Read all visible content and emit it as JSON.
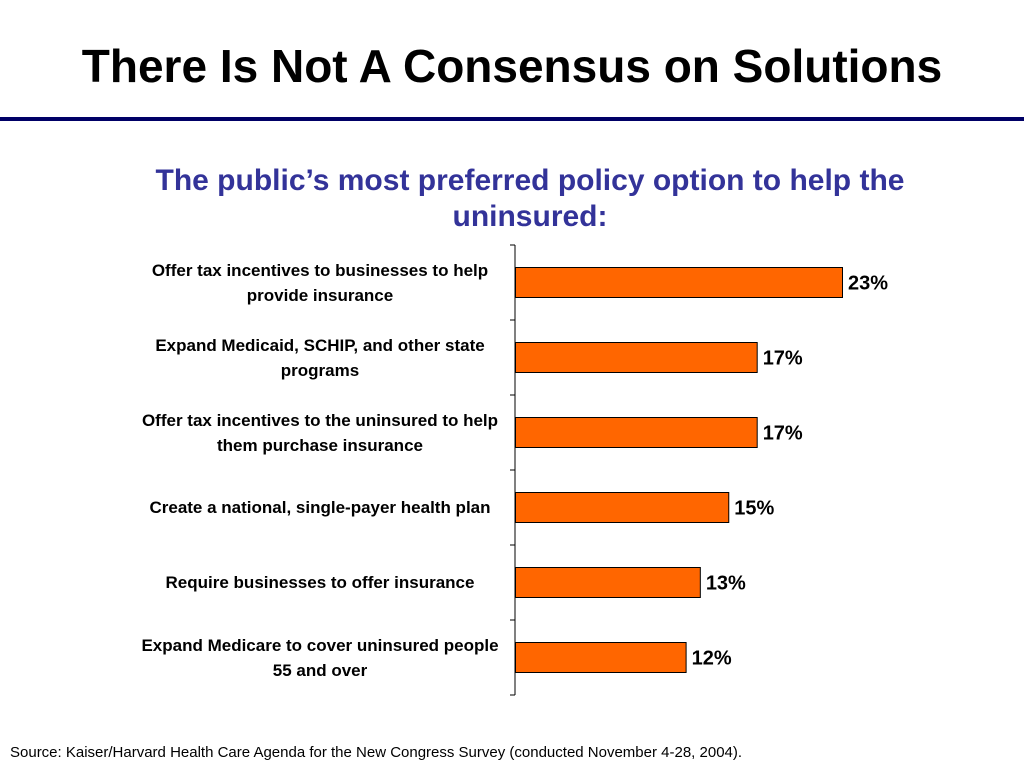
{
  "slide": {
    "title": "There Is Not A Consensus on Solutions",
    "rule_color": "#000066"
  },
  "chart_data": {
    "type": "bar",
    "orientation": "horizontal",
    "title": "The public’s most preferred policy option to help the uninsured:",
    "title_color": "#333399",
    "categories": [
      "Offer tax incentives to businesses to help provide insurance",
      "Expand Medicaid, SCHIP, and other state programs",
      "Offer tax incentives to the uninsured to help them purchase insurance",
      "Create a national, single-payer health plan",
      "Require businesses to offer insurance",
      "Expand Medicare to cover uninsured people 55 and over"
    ],
    "values": [
      23,
      17,
      17,
      15,
      13,
      12
    ],
    "value_labels": [
      "23%",
      "17%",
      "17%",
      "15%",
      "13%",
      "12%"
    ],
    "unit": "%",
    "bar_color": "#FF6600",
    "bar_border_color": "#000000",
    "xlim": [
      0,
      35
    ],
    "grid": false,
    "legend": "none"
  },
  "footer": {
    "source": "Source: Kaiser/Harvard Health Care Agenda for the New Congress Survey (conducted November 4-28, 2004)."
  }
}
